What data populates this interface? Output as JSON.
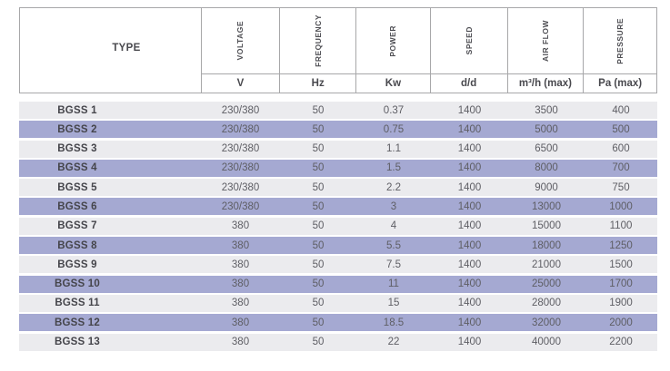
{
  "table": {
    "type_column": {
      "label": "TYPE"
    },
    "columns": [
      {
        "label": "VOLTAGE",
        "unit": "V"
      },
      {
        "label": "FREQUENCY",
        "unit": "Hz"
      },
      {
        "label": "POWER",
        "unit": "Kw"
      },
      {
        "label": "SPEED",
        "unit": "d/d"
      },
      {
        "label": "AIR FLOW",
        "unit": "m³/h (max)"
      },
      {
        "label": "PRESSURE",
        "unit": "Pa (max)"
      }
    ],
    "rows": [
      {
        "type": "BGSS 1",
        "values": [
          "230/380",
          "50",
          "0.37",
          "1400",
          "3500",
          "400"
        ]
      },
      {
        "type": "BGSS 2",
        "values": [
          "230/380",
          "50",
          "0.75",
          "1400",
          "5000",
          "500"
        ]
      },
      {
        "type": "BGSS 3",
        "values": [
          "230/380",
          "50",
          "1.1",
          "1400",
          "6500",
          "600"
        ]
      },
      {
        "type": "BGSS 4",
        "values": [
          "230/380",
          "50",
          "1.5",
          "1400",
          "8000",
          "700"
        ]
      },
      {
        "type": "BGSS 5",
        "values": [
          "230/380",
          "50",
          "2.2",
          "1400",
          "9000",
          "750"
        ]
      },
      {
        "type": "BGSS 6",
        "values": [
          "230/380",
          "50",
          "3",
          "1400",
          "13000",
          "1000"
        ]
      },
      {
        "type": "BGSS 7",
        "values": [
          "380",
          "50",
          "4",
          "1400",
          "15000",
          "1100"
        ]
      },
      {
        "type": "BGSS 8",
        "values": [
          "380",
          "50",
          "5.5",
          "1400",
          "18000",
          "1250"
        ]
      },
      {
        "type": "BGSS 9",
        "values": [
          "380",
          "50",
          "7.5",
          "1400",
          "21000",
          "1500"
        ]
      },
      {
        "type": "BGSS 10",
        "values": [
          "380",
          "50",
          "11",
          "1400",
          "25000",
          "1700"
        ]
      },
      {
        "type": "BGSS 11",
        "values": [
          "380",
          "50",
          "15",
          "1400",
          "28000",
          "1900"
        ]
      },
      {
        "type": "BGSS 12",
        "values": [
          "380",
          "50",
          "18.5",
          "1400",
          "32000",
          "2000"
        ]
      },
      {
        "type": "BGSS 13",
        "values": [
          "380",
          "50",
          "22",
          "1400",
          "40000",
          "2200"
        ]
      }
    ],
    "colors": {
      "row_base": "#ebebee",
      "row_alt": "#a5a9d2",
      "border": "#a7a7a9",
      "text": "#5e5e64",
      "text_strong": "#45454b"
    }
  }
}
